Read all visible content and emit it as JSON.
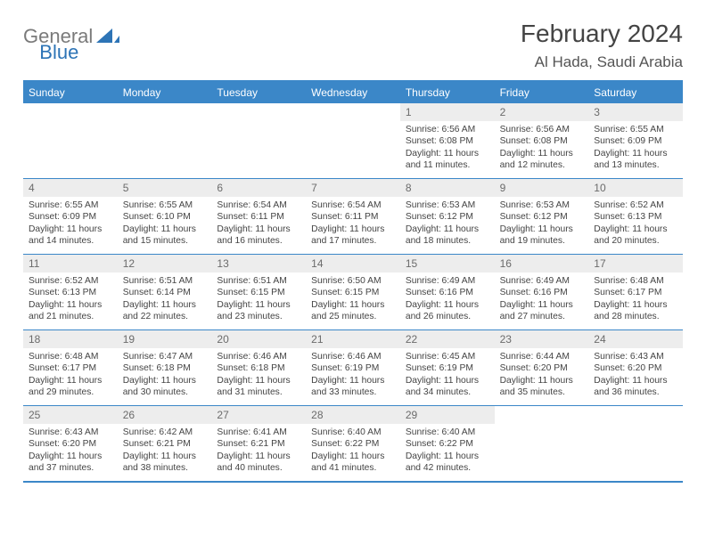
{
  "logo": {
    "general": "General",
    "blue": "Blue"
  },
  "title": "February 2024",
  "location": "Al Hada, Saudi Arabia",
  "colors": {
    "accent": "#3b87c8",
    "daynum_bg": "#ededed",
    "text": "#333333",
    "logo_gray": "#7a7a7a"
  },
  "weekdays": [
    "Sunday",
    "Monday",
    "Tuesday",
    "Wednesday",
    "Thursday",
    "Friday",
    "Saturday"
  ],
  "weeks": [
    [
      {
        "day": "",
        "sunrise": "",
        "sunset": "",
        "daylight": ""
      },
      {
        "day": "",
        "sunrise": "",
        "sunset": "",
        "daylight": ""
      },
      {
        "day": "",
        "sunrise": "",
        "sunset": "",
        "daylight": ""
      },
      {
        "day": "",
        "sunrise": "",
        "sunset": "",
        "daylight": ""
      },
      {
        "day": "1",
        "sunrise": "Sunrise: 6:56 AM",
        "sunset": "Sunset: 6:08 PM",
        "daylight": "Daylight: 11 hours and 11 minutes."
      },
      {
        "day": "2",
        "sunrise": "Sunrise: 6:56 AM",
        "sunset": "Sunset: 6:08 PM",
        "daylight": "Daylight: 11 hours and 12 minutes."
      },
      {
        "day": "3",
        "sunrise": "Sunrise: 6:55 AM",
        "sunset": "Sunset: 6:09 PM",
        "daylight": "Daylight: 11 hours and 13 minutes."
      }
    ],
    [
      {
        "day": "4",
        "sunrise": "Sunrise: 6:55 AM",
        "sunset": "Sunset: 6:09 PM",
        "daylight": "Daylight: 11 hours and 14 minutes."
      },
      {
        "day": "5",
        "sunrise": "Sunrise: 6:55 AM",
        "sunset": "Sunset: 6:10 PM",
        "daylight": "Daylight: 11 hours and 15 minutes."
      },
      {
        "day": "6",
        "sunrise": "Sunrise: 6:54 AM",
        "sunset": "Sunset: 6:11 PM",
        "daylight": "Daylight: 11 hours and 16 minutes."
      },
      {
        "day": "7",
        "sunrise": "Sunrise: 6:54 AM",
        "sunset": "Sunset: 6:11 PM",
        "daylight": "Daylight: 11 hours and 17 minutes."
      },
      {
        "day": "8",
        "sunrise": "Sunrise: 6:53 AM",
        "sunset": "Sunset: 6:12 PM",
        "daylight": "Daylight: 11 hours and 18 minutes."
      },
      {
        "day": "9",
        "sunrise": "Sunrise: 6:53 AM",
        "sunset": "Sunset: 6:12 PM",
        "daylight": "Daylight: 11 hours and 19 minutes."
      },
      {
        "day": "10",
        "sunrise": "Sunrise: 6:52 AM",
        "sunset": "Sunset: 6:13 PM",
        "daylight": "Daylight: 11 hours and 20 minutes."
      }
    ],
    [
      {
        "day": "11",
        "sunrise": "Sunrise: 6:52 AM",
        "sunset": "Sunset: 6:13 PM",
        "daylight": "Daylight: 11 hours and 21 minutes."
      },
      {
        "day": "12",
        "sunrise": "Sunrise: 6:51 AM",
        "sunset": "Sunset: 6:14 PM",
        "daylight": "Daylight: 11 hours and 22 minutes."
      },
      {
        "day": "13",
        "sunrise": "Sunrise: 6:51 AM",
        "sunset": "Sunset: 6:15 PM",
        "daylight": "Daylight: 11 hours and 23 minutes."
      },
      {
        "day": "14",
        "sunrise": "Sunrise: 6:50 AM",
        "sunset": "Sunset: 6:15 PM",
        "daylight": "Daylight: 11 hours and 25 minutes."
      },
      {
        "day": "15",
        "sunrise": "Sunrise: 6:49 AM",
        "sunset": "Sunset: 6:16 PM",
        "daylight": "Daylight: 11 hours and 26 minutes."
      },
      {
        "day": "16",
        "sunrise": "Sunrise: 6:49 AM",
        "sunset": "Sunset: 6:16 PM",
        "daylight": "Daylight: 11 hours and 27 minutes."
      },
      {
        "day": "17",
        "sunrise": "Sunrise: 6:48 AM",
        "sunset": "Sunset: 6:17 PM",
        "daylight": "Daylight: 11 hours and 28 minutes."
      }
    ],
    [
      {
        "day": "18",
        "sunrise": "Sunrise: 6:48 AM",
        "sunset": "Sunset: 6:17 PM",
        "daylight": "Daylight: 11 hours and 29 minutes."
      },
      {
        "day": "19",
        "sunrise": "Sunrise: 6:47 AM",
        "sunset": "Sunset: 6:18 PM",
        "daylight": "Daylight: 11 hours and 30 minutes."
      },
      {
        "day": "20",
        "sunrise": "Sunrise: 6:46 AM",
        "sunset": "Sunset: 6:18 PM",
        "daylight": "Daylight: 11 hours and 31 minutes."
      },
      {
        "day": "21",
        "sunrise": "Sunrise: 6:46 AM",
        "sunset": "Sunset: 6:19 PM",
        "daylight": "Daylight: 11 hours and 33 minutes."
      },
      {
        "day": "22",
        "sunrise": "Sunrise: 6:45 AM",
        "sunset": "Sunset: 6:19 PM",
        "daylight": "Daylight: 11 hours and 34 minutes."
      },
      {
        "day": "23",
        "sunrise": "Sunrise: 6:44 AM",
        "sunset": "Sunset: 6:20 PM",
        "daylight": "Daylight: 11 hours and 35 minutes."
      },
      {
        "day": "24",
        "sunrise": "Sunrise: 6:43 AM",
        "sunset": "Sunset: 6:20 PM",
        "daylight": "Daylight: 11 hours and 36 minutes."
      }
    ],
    [
      {
        "day": "25",
        "sunrise": "Sunrise: 6:43 AM",
        "sunset": "Sunset: 6:20 PM",
        "daylight": "Daylight: 11 hours and 37 minutes."
      },
      {
        "day": "26",
        "sunrise": "Sunrise: 6:42 AM",
        "sunset": "Sunset: 6:21 PM",
        "daylight": "Daylight: 11 hours and 38 minutes."
      },
      {
        "day": "27",
        "sunrise": "Sunrise: 6:41 AM",
        "sunset": "Sunset: 6:21 PM",
        "daylight": "Daylight: 11 hours and 40 minutes."
      },
      {
        "day": "28",
        "sunrise": "Sunrise: 6:40 AM",
        "sunset": "Sunset: 6:22 PM",
        "daylight": "Daylight: 11 hours and 41 minutes."
      },
      {
        "day": "29",
        "sunrise": "Sunrise: 6:40 AM",
        "sunset": "Sunset: 6:22 PM",
        "daylight": "Daylight: 11 hours and 42 minutes."
      },
      {
        "day": "",
        "sunrise": "",
        "sunset": "",
        "daylight": ""
      },
      {
        "day": "",
        "sunrise": "",
        "sunset": "",
        "daylight": ""
      }
    ]
  ]
}
